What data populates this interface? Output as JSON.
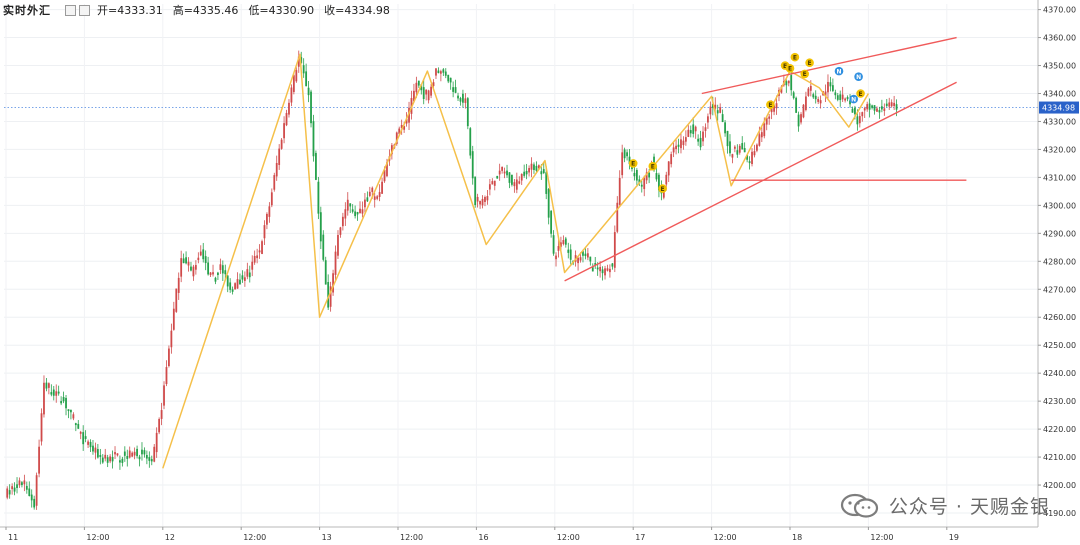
{
  "header": {
    "title": "实时外汇",
    "open_label": "开=4333.31",
    "high_label": "高=4335.46",
    "low_label": "低=4330.90",
    "close_label": "收=4334.98"
  },
  "watermark": {
    "text": "公众号 · 天赐金银"
  },
  "colors": {
    "up": "#d04a4a",
    "down": "#24a04a",
    "zigzag": "#f5c04a",
    "channel": "#f05a5a",
    "current_line": "#7aa5e8",
    "badge_yellow": "#f2c200",
    "badge_blue": "#2f8fe0"
  },
  "chart_data": {
    "type": "candlestick",
    "title": "",
    "y_axis": {
      "side": "right",
      "range": [
        4185,
        4372
      ],
      "ticks": [
        4190,
        4200,
        4210,
        4220,
        4230,
        4240,
        4250,
        4260,
        4270,
        4280,
        4290,
        4300,
        4310,
        4320,
        4330,
        4340,
        4350,
        4360,
        4370
      ],
      "tick_labels": [
        "4190.00",
        "4200.00",
        "4210.00",
        "4220.00",
        "4230.00",
        "4240.00",
        "4250.00",
        "4260.00",
        "4270.00",
        "4280.00",
        "4290.00",
        "4300.00",
        "4310.00",
        "4320.00",
        "4330.00",
        "4340.00",
        "4350.00",
        "4360.00",
        "4370.00"
      ]
    },
    "x_axis": {
      "labels": [
        "11",
        "12:00",
        "12",
        "12:00",
        "13",
        "12:00",
        "16",
        "12:00",
        "17",
        "12:00",
        "18",
        "12:00",
        "19"
      ],
      "label_slot": [
        0,
        8,
        16,
        24,
        32,
        40,
        48,
        56,
        64,
        72,
        80,
        88,
        96
      ]
    },
    "current_price": {
      "value": 4334.98,
      "label": "4334.98"
    },
    "price_anchors": [
      [
        0,
        4197
      ],
      [
        2,
        4201
      ],
      [
        3,
        4193
      ],
      [
        4,
        4236
      ],
      [
        6,
        4230
      ],
      [
        8,
        4216
      ],
      [
        10,
        4209
      ],
      [
        14,
        4212
      ],
      [
        15,
        4207
      ],
      [
        16,
        4228
      ],
      [
        17,
        4256
      ],
      [
        18,
        4282
      ],
      [
        19,
        4276
      ],
      [
        20,
        4283
      ],
      [
        21,
        4274
      ],
      [
        22,
        4278
      ],
      [
        23,
        4270
      ],
      [
        25,
        4277
      ],
      [
        26,
        4284
      ],
      [
        27,
        4300
      ],
      [
        28,
        4320
      ],
      [
        29,
        4338
      ],
      [
        30,
        4353
      ],
      [
        31,
        4340
      ],
      [
        32,
        4297
      ],
      [
        33,
        4263
      ],
      [
        34,
        4290
      ],
      [
        35,
        4301
      ],
      [
        36,
        4296
      ],
      [
        37,
        4304
      ],
      [
        38,
        4302
      ],
      [
        39,
        4315
      ],
      [
        40,
        4326
      ],
      [
        41,
        4330
      ],
      [
        42,
        4344
      ],
      [
        43,
        4338
      ],
      [
        44,
        4348
      ],
      [
        45,
        4347
      ],
      [
        46,
        4340
      ],
      [
        47,
        4337
      ],
      [
        48,
        4300
      ],
      [
        49,
        4303
      ],
      [
        50,
        4310
      ],
      [
        51,
        4312
      ],
      [
        52,
        4307
      ],
      [
        53,
        4312
      ],
      [
        54,
        4314
      ],
      [
        55,
        4312
      ],
      [
        56,
        4282
      ],
      [
        57,
        4287
      ],
      [
        58,
        4280
      ],
      [
        59,
        4283
      ],
      [
        60,
        4278
      ],
      [
        61,
        4276
      ],
      [
        62,
        4279
      ],
      [
        63,
        4320
      ],
      [
        64,
        4313
      ],
      [
        65,
        4307
      ],
      [
        66,
        4316
      ],
      [
        67,
        4303
      ],
      [
        68,
        4318
      ],
      [
        69,
        4323
      ],
      [
        70,
        4328
      ],
      [
        71,
        4322
      ],
      [
        72,
        4336
      ],
      [
        73,
        4334
      ],
      [
        74,
        4318
      ],
      [
        75,
        4321
      ],
      [
        76,
        4316
      ],
      [
        77,
        4324
      ],
      [
        78,
        4332
      ],
      [
        79,
        4340
      ],
      [
        80,
        4346
      ],
      [
        81,
        4329
      ],
      [
        82,
        4342
      ],
      [
        83,
        4337
      ],
      [
        84,
        4343
      ],
      [
        85,
        4339
      ],
      [
        86,
        4338
      ],
      [
        87,
        4330
      ],
      [
        88,
        4335
      ],
      [
        89,
        4334
      ],
      [
        90,
        4336
      ],
      [
        91,
        4335
      ]
    ],
    "zigzag": [
      [
        16,
        4206
      ],
      [
        30,
        4354
      ],
      [
        32,
        4260
      ],
      [
        43,
        4348
      ],
      [
        49,
        4286
      ],
      [
        55,
        4316
      ],
      [
        57,
        4276
      ],
      [
        72,
        4339
      ],
      [
        74,
        4307
      ],
      [
        80,
        4348
      ],
      [
        83,
        4342
      ],
      [
        86,
        4328
      ],
      [
        88,
        4340
      ]
    ],
    "channel_upper": [
      [
        71,
        4340
      ],
      [
        97,
        4360
      ]
    ],
    "channel_lower": [
      [
        57,
        4273
      ],
      [
        97,
        4344
      ]
    ],
    "support_line": [
      [
        74,
        4309
      ],
      [
        98,
        4309
      ]
    ],
    "badges": [
      {
        "slot": 64,
        "price": 4315,
        "label": "E",
        "color": "yellow"
      },
      {
        "slot": 66,
        "price": 4314,
        "label": "E",
        "color": "yellow"
      },
      {
        "slot": 67,
        "price": 4306,
        "label": "E",
        "color": "yellow"
      },
      {
        "slot": 78,
        "price": 4336,
        "label": "E",
        "color": "yellow"
      },
      {
        "slot": 79.5,
        "price": 4350,
        "label": "E",
        "color": "yellow"
      },
      {
        "slot": 80,
        "price": 4349,
        "label": "E",
        "color": "yellow"
      },
      {
        "slot": 80.5,
        "price": 4353,
        "label": "E",
        "color": "yellow"
      },
      {
        "slot": 81.5,
        "price": 4347,
        "label": "E",
        "color": "yellow"
      },
      {
        "slot": 82,
        "price": 4351,
        "label": "E",
        "color": "yellow"
      },
      {
        "slot": 85,
        "price": 4348,
        "label": "N",
        "color": "blue"
      },
      {
        "slot": 86.5,
        "price": 4338,
        "label": "N",
        "color": "blue"
      },
      {
        "slot": 87,
        "price": 4346,
        "label": "N",
        "color": "blue"
      },
      {
        "slot": 87.2,
        "price": 4340,
        "label": "E",
        "color": "yellow"
      }
    ]
  }
}
